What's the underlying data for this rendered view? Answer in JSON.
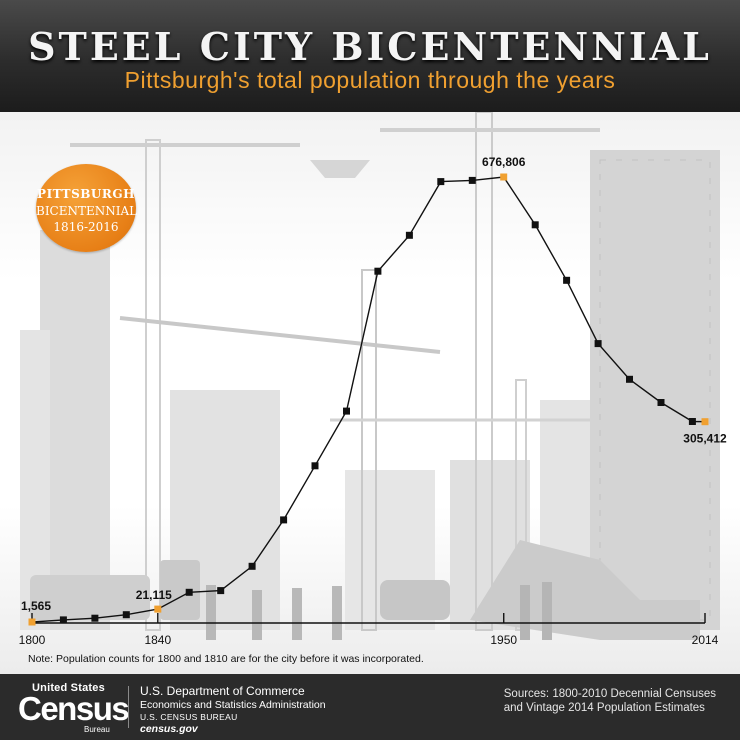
{
  "header": {
    "title": "STEEL CITY BICENTENNIAL",
    "subtitle": "Pittsburgh's total population through the years"
  },
  "badge": {
    "line1": "PITTSBURGH",
    "line2": "BICENTENNIAL",
    "line3": "1816-2016"
  },
  "colors": {
    "accent": "#f0a030",
    "badge": "#e77f16",
    "line": "#111111",
    "header_bg": "#2c2c2c",
    "footer_bg": "#2b2b2b"
  },
  "chart_data": {
    "type": "line",
    "title": "Pittsburgh's total population through the years",
    "x": [
      1800,
      1810,
      1820,
      1830,
      1840,
      1850,
      1860,
      1870,
      1880,
      1890,
      1900,
      1910,
      1920,
      1930,
      1940,
      1950,
      1960,
      1970,
      1980,
      1990,
      2000,
      2010,
      2014
    ],
    "values": [
      1565,
      4768,
      7248,
      12568,
      21115,
      46601,
      49221,
      86076,
      156389,
      238617,
      321616,
      533905,
      588343,
      669817,
      671659,
      676806,
      604332,
      520117,
      423938,
      369879,
      334563,
      305704,
      305412
    ],
    "highlighted": [
      1800,
      1840,
      1950,
      2014
    ],
    "xticks": [
      1800,
      1840,
      1950,
      2014
    ],
    "xlim": [
      1800,
      2014
    ],
    "ylim": [
      0,
      676806
    ],
    "data_labels": [
      {
        "x": 1800,
        "text": "1,565"
      },
      {
        "x": 1840,
        "text": "21,115"
      },
      {
        "x": 1950,
        "text": "676,806"
      },
      {
        "x": 2014,
        "text": "305,412"
      }
    ],
    "grid": false,
    "legend": "none"
  },
  "note": "Note: Population counts for 1800 and 1810 are for the city before it was incorporated.",
  "footer": {
    "logo_top": "United States",
    "logo_main": "Census",
    "logo_sub": "Bureau",
    "agency_line1": "U.S. Department of Commerce",
    "agency_line2": "Economics and Statistics Administration",
    "agency_line3": "U.S. CENSUS BUREAU",
    "agency_line4": "census.gov",
    "sources_line1": "Sources: 1800-2010 Decennial Censuses",
    "sources_line2": "and Vintage 2014 Population Estimates"
  }
}
